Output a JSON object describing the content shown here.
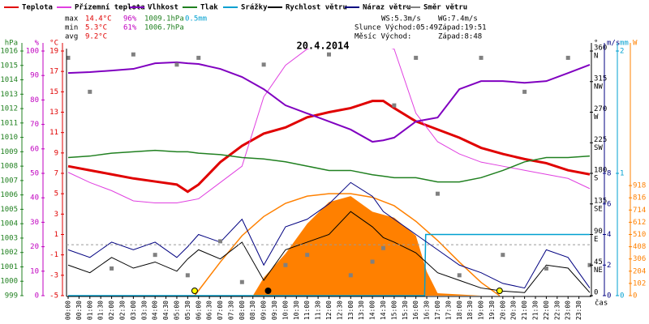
{
  "chart_data": {
    "type": "line",
    "title": "20.4.2014",
    "x_label": "čas",
    "xlim": [
      0,
      24
    ],
    "x": [
      0,
      1,
      2,
      3,
      4,
      5,
      5.5,
      6,
      7,
      8,
      9,
      10,
      11,
      12,
      13,
      14,
      14.5,
      15,
      16,
      17,
      18,
      19,
      20,
      21,
      22,
      23,
      24
    ],
    "series": [
      {
        "name": "Teplota",
        "color": "#e00000",
        "axis": "temp",
        "width": 3,
        "values": [
          7.7,
          7.3,
          6.9,
          6.5,
          6.2,
          5.9,
          5.2,
          5.9,
          8.1,
          9.7,
          10.9,
          11.5,
          12.5,
          13.0,
          13.4,
          14.1,
          14.1,
          13.4,
          12.1,
          11.3,
          10.5,
          9.5,
          8.9,
          8.4,
          8.0,
          7.3,
          6.9
        ]
      },
      {
        "name": "Přízemní teplota",
        "color": "#e040e0",
        "axis": "temp",
        "width": 1,
        "values": [
          7.1,
          6.1,
          5.3,
          4.3,
          4.1,
          4.1,
          4.3,
          4.5,
          6.1,
          7.7,
          14.5,
          17.6,
          19.2,
          20,
          20,
          20,
          19.5,
          19.2,
          12.9,
          10.1,
          8.9,
          8.1,
          7.7,
          7.3,
          6.9,
          6.5,
          5.5
        ]
      },
      {
        "name": "Vlhkost",
        "color": "#8000c0",
        "axis": "hum",
        "width": 2,
        "values": [
          91,
          91.4,
          92,
          92.7,
          95,
          95.4,
          95,
          94.7,
          92.7,
          89.4,
          84.4,
          77.8,
          74.5,
          71.2,
          67.9,
          62.9,
          63.5,
          64.6,
          71.2,
          72.8,
          84.4,
          87.7,
          87.7,
          87,
          87.7,
          91,
          94.4
        ]
      },
      {
        "name": "Tlak",
        "color": "#208020",
        "axis": "pres",
        "width": 1.5,
        "values": [
          1008.6,
          1008.7,
          1008.9,
          1009.0,
          1009.1,
          1009.0,
          1009.0,
          1008.9,
          1008.8,
          1008.6,
          1008.5,
          1008.3,
          1008.0,
          1007.7,
          1007.7,
          1007.4,
          1007.3,
          1007.2,
          1007.2,
          1006.9,
          1006.9,
          1007.2,
          1007.7,
          1008.3,
          1008.6,
          1008.6,
          1008.7
        ]
      },
      {
        "name": "Srážky",
        "color": "#00a0d0",
        "axis": "rain",
        "width": 1.5,
        "x": [
          0,
          16.4,
          16.45,
          24
        ],
        "values": [
          0,
          0,
          0.5,
          0.5
        ]
      },
      {
        "name": "Rychlost větru",
        "color": "#000000",
        "axis": "wind",
        "width": 1,
        "values": [
          2.0,
          1.5,
          2.5,
          1.8,
          2.2,
          1.6,
          2.4,
          3.0,
          2.4,
          3.5,
          1.0,
          3.0,
          3.5,
          4.0,
          5.5,
          4.5,
          3.8,
          3.5,
          2.8,
          1.5,
          1.0,
          0.5,
          0.3,
          0.2,
          2.0,
          1.8,
          0.2
        ]
      },
      {
        "name": "Náraz větru",
        "color": "#000080",
        "axis": "wind",
        "width": 1,
        "values": [
          3.0,
          2.5,
          3.5,
          3.0,
          3.5,
          2.5,
          3.2,
          4.0,
          3.5,
          5.0,
          2.0,
          4.5,
          5.0,
          6.0,
          7.4,
          6.5,
          5.5,
          5.0,
          4.0,
          3.0,
          2.0,
          1.5,
          0.8,
          0.5,
          3.0,
          2.5,
          0.5
        ]
      },
      {
        "name": "Směr větru",
        "color": "#808080",
        "axis": "dir",
        "kind": "points",
        "values": [
          350,
          300,
          40,
          355,
          60,
          340,
          30,
          350,
          80,
          20,
          340,
          45,
          60,
          355,
          30,
          50,
          70,
          280,
          350,
          150,
          30,
          350,
          60,
          300,
          40,
          350,
          45
        ]
      }
    ],
    "solar": {
      "color": "#ff8000",
      "x": [
        0,
        8.5,
        9,
        10,
        11,
        12,
        13,
        14,
        15,
        16,
        16.5,
        17,
        18,
        19,
        24
      ],
      "values": [
        0,
        0,
        150,
        350,
        600,
        780,
        830,
        700,
        650,
        500,
        200,
        20,
        10,
        0,
        0
      ]
    },
    "sun_path": {
      "color": "#ff8000",
      "x": [
        5.82,
        7,
        8,
        9,
        10,
        11,
        12,
        13,
        14,
        15,
        16,
        17,
        18,
        19,
        19.85
      ],
      "values": [
        0,
        280,
        500,
        660,
        770,
        830,
        850,
        850,
        820,
        750,
        620,
        460,
        280,
        110,
        0
      ]
    },
    "sun_markers_x": [
      5.82,
      19.85
    ],
    "moon_markers_x": [
      9.2
    ],
    "reference_line": 0,
    "axes": {
      "pres": {
        "label": "hPa",
        "color": "#208020",
        "lim": [
          999,
          1016
        ],
        "ticks": [
          999,
          1000,
          1001,
          1002,
          1003,
          1004,
          1005,
          1006,
          1007,
          1008,
          1009,
          1010,
          1011,
          1012,
          1013,
          1014,
          1015,
          1016
        ]
      },
      "hum": {
        "label": "%",
        "color": "#c000c0",
        "lim": [
          0,
          100
        ],
        "ticks": [
          0,
          10,
          20,
          30,
          40,
          50,
          60,
          70,
          80,
          90,
          100
        ]
      },
      "temp": {
        "label": "°C",
        "color": "#e00000",
        "lim": [
          -5,
          19
        ],
        "ticks": [
          -5,
          -3,
          -1,
          1,
          3,
          5,
          7,
          9,
          11,
          13,
          15,
          17,
          19
        ]
      },
      "dir": {
        "label": "°",
        "color": "#000000",
        "lim": [
          0,
          360
        ],
        "ticks": [
          360,
          315,
          270,
          225,
          180,
          135,
          90,
          45,
          0
        ],
        "compass": [
          "N",
          "NW",
          "W",
          "SW",
          "S",
          "SE",
          "E",
          "NE"
        ]
      },
      "wind": {
        "label": "m/s",
        "color": "#000080",
        "lim": [
          0,
          16
        ],
        "ticks": [
          0,
          2,
          4,
          6,
          8
        ]
      },
      "rain": {
        "label": "mm",
        "color": "#00a0d0",
        "lim": [
          0,
          2
        ],
        "ticks": [
          0,
          1,
          2
        ]
      },
      "solar": {
        "label": "W",
        "color": "#ff8000",
        "lim": [
          0,
          2040
        ],
        "ticks": [
          0,
          102,
          204,
          306,
          408,
          510,
          612,
          714,
          816,
          918
        ]
      }
    },
    "xticks": [
      {
        "value": 0,
        "label": "00:00"
      },
      {
        "value": 0.5,
        "label": "00:30"
      },
      {
        "value": 1,
        "label": "01:00"
      },
      {
        "value": 1.5,
        "label": "01:30"
      },
      {
        "value": 2,
        "label": "02:00"
      },
      {
        "value": 2.5,
        "label": "02:30"
      },
      {
        "value": 3,
        "label": "03:00"
      },
      {
        "value": 3.5,
        "label": "03:30"
      },
      {
        "value": 4,
        "label": "04:00"
      },
      {
        "value": 4.5,
        "label": "04:30"
      },
      {
        "value": 5,
        "label": "05:00"
      },
      {
        "value": 5.5,
        "label": "05:30"
      },
      {
        "value": 6,
        "label": "06:00"
      },
      {
        "value": 6.5,
        "label": "06:30"
      },
      {
        "value": 7,
        "label": "07:00"
      },
      {
        "value": 7.5,
        "label": "07:30"
      },
      {
        "value": 8,
        "label": "08:00"
      },
      {
        "value": 8.5,
        "label": "08:30"
      },
      {
        "value": 9,
        "label": "09:00"
      },
      {
        "value": 9.5,
        "label": "09:30"
      },
      {
        "value": 10,
        "label": "10:00"
      },
      {
        "value": 10.5,
        "label": "10:30"
      },
      {
        "value": 11,
        "label": "11:00"
      },
      {
        "value": 11.5,
        "label": "11:30"
      },
      {
        "value": 12,
        "label": "12:00"
      },
      {
        "value": 12.5,
        "label": "12:30"
      },
      {
        "value": 13,
        "label": "13:00"
      },
      {
        "value": 13.5,
        "label": "13:30"
      },
      {
        "value": 14,
        "label": "14:00"
      },
      {
        "value": 14.5,
        "label": "14:30"
      },
      {
        "value": 15,
        "label": "15:00"
      },
      {
        "value": 15.5,
        "label": "15:30"
      },
      {
        "value": 16,
        "label": "16:00"
      },
      {
        "value": 16.5,
        "label": "16:30"
      },
      {
        "value": 17,
        "label": "17:00"
      },
      {
        "value": 17.5,
        "label": "17:30"
      },
      {
        "value": 18,
        "label": "18:00"
      },
      {
        "value": 18.5,
        "label": "18:30"
      },
      {
        "value": 19,
        "label": "19:00"
      },
      {
        "value": 19.5,
        "label": "19:30"
      },
      {
        "value": 20,
        "label": "20:00"
      },
      {
        "value": 20.5,
        "label": "20:30"
      },
      {
        "value": 21,
        "label": "21:00"
      },
      {
        "value": 21.5,
        "label": "21:30"
      },
      {
        "value": 22,
        "label": "22:00"
      },
      {
        "value": 22.5,
        "label": "22:30"
      },
      {
        "value": 23,
        "label": "23:00"
      },
      {
        "value": 23.5,
        "label": "23:30"
      }
    ],
    "stats": [
      {
        "label": "max",
        "temp": "14.4°C",
        "hum": "96%",
        "pres": "1009.1hPa",
        "rain": "0.5mm"
      },
      {
        "label": "min",
        "temp": "5.3°C",
        "hum": "61%",
        "pres": "1006.7hPa"
      },
      {
        "label": "avg",
        "temp": "9.2°C"
      }
    ],
    "info": {
      "ws": "WS:5.3m/s",
      "wg": "WG:7.4m/s",
      "sun_rise": "Slunce Východ:05:49",
      "sun_set": "Západ:19:51",
      "moon_rise": "Měsíc Východ:",
      "moon_set": "Západ:8:48"
    }
  }
}
